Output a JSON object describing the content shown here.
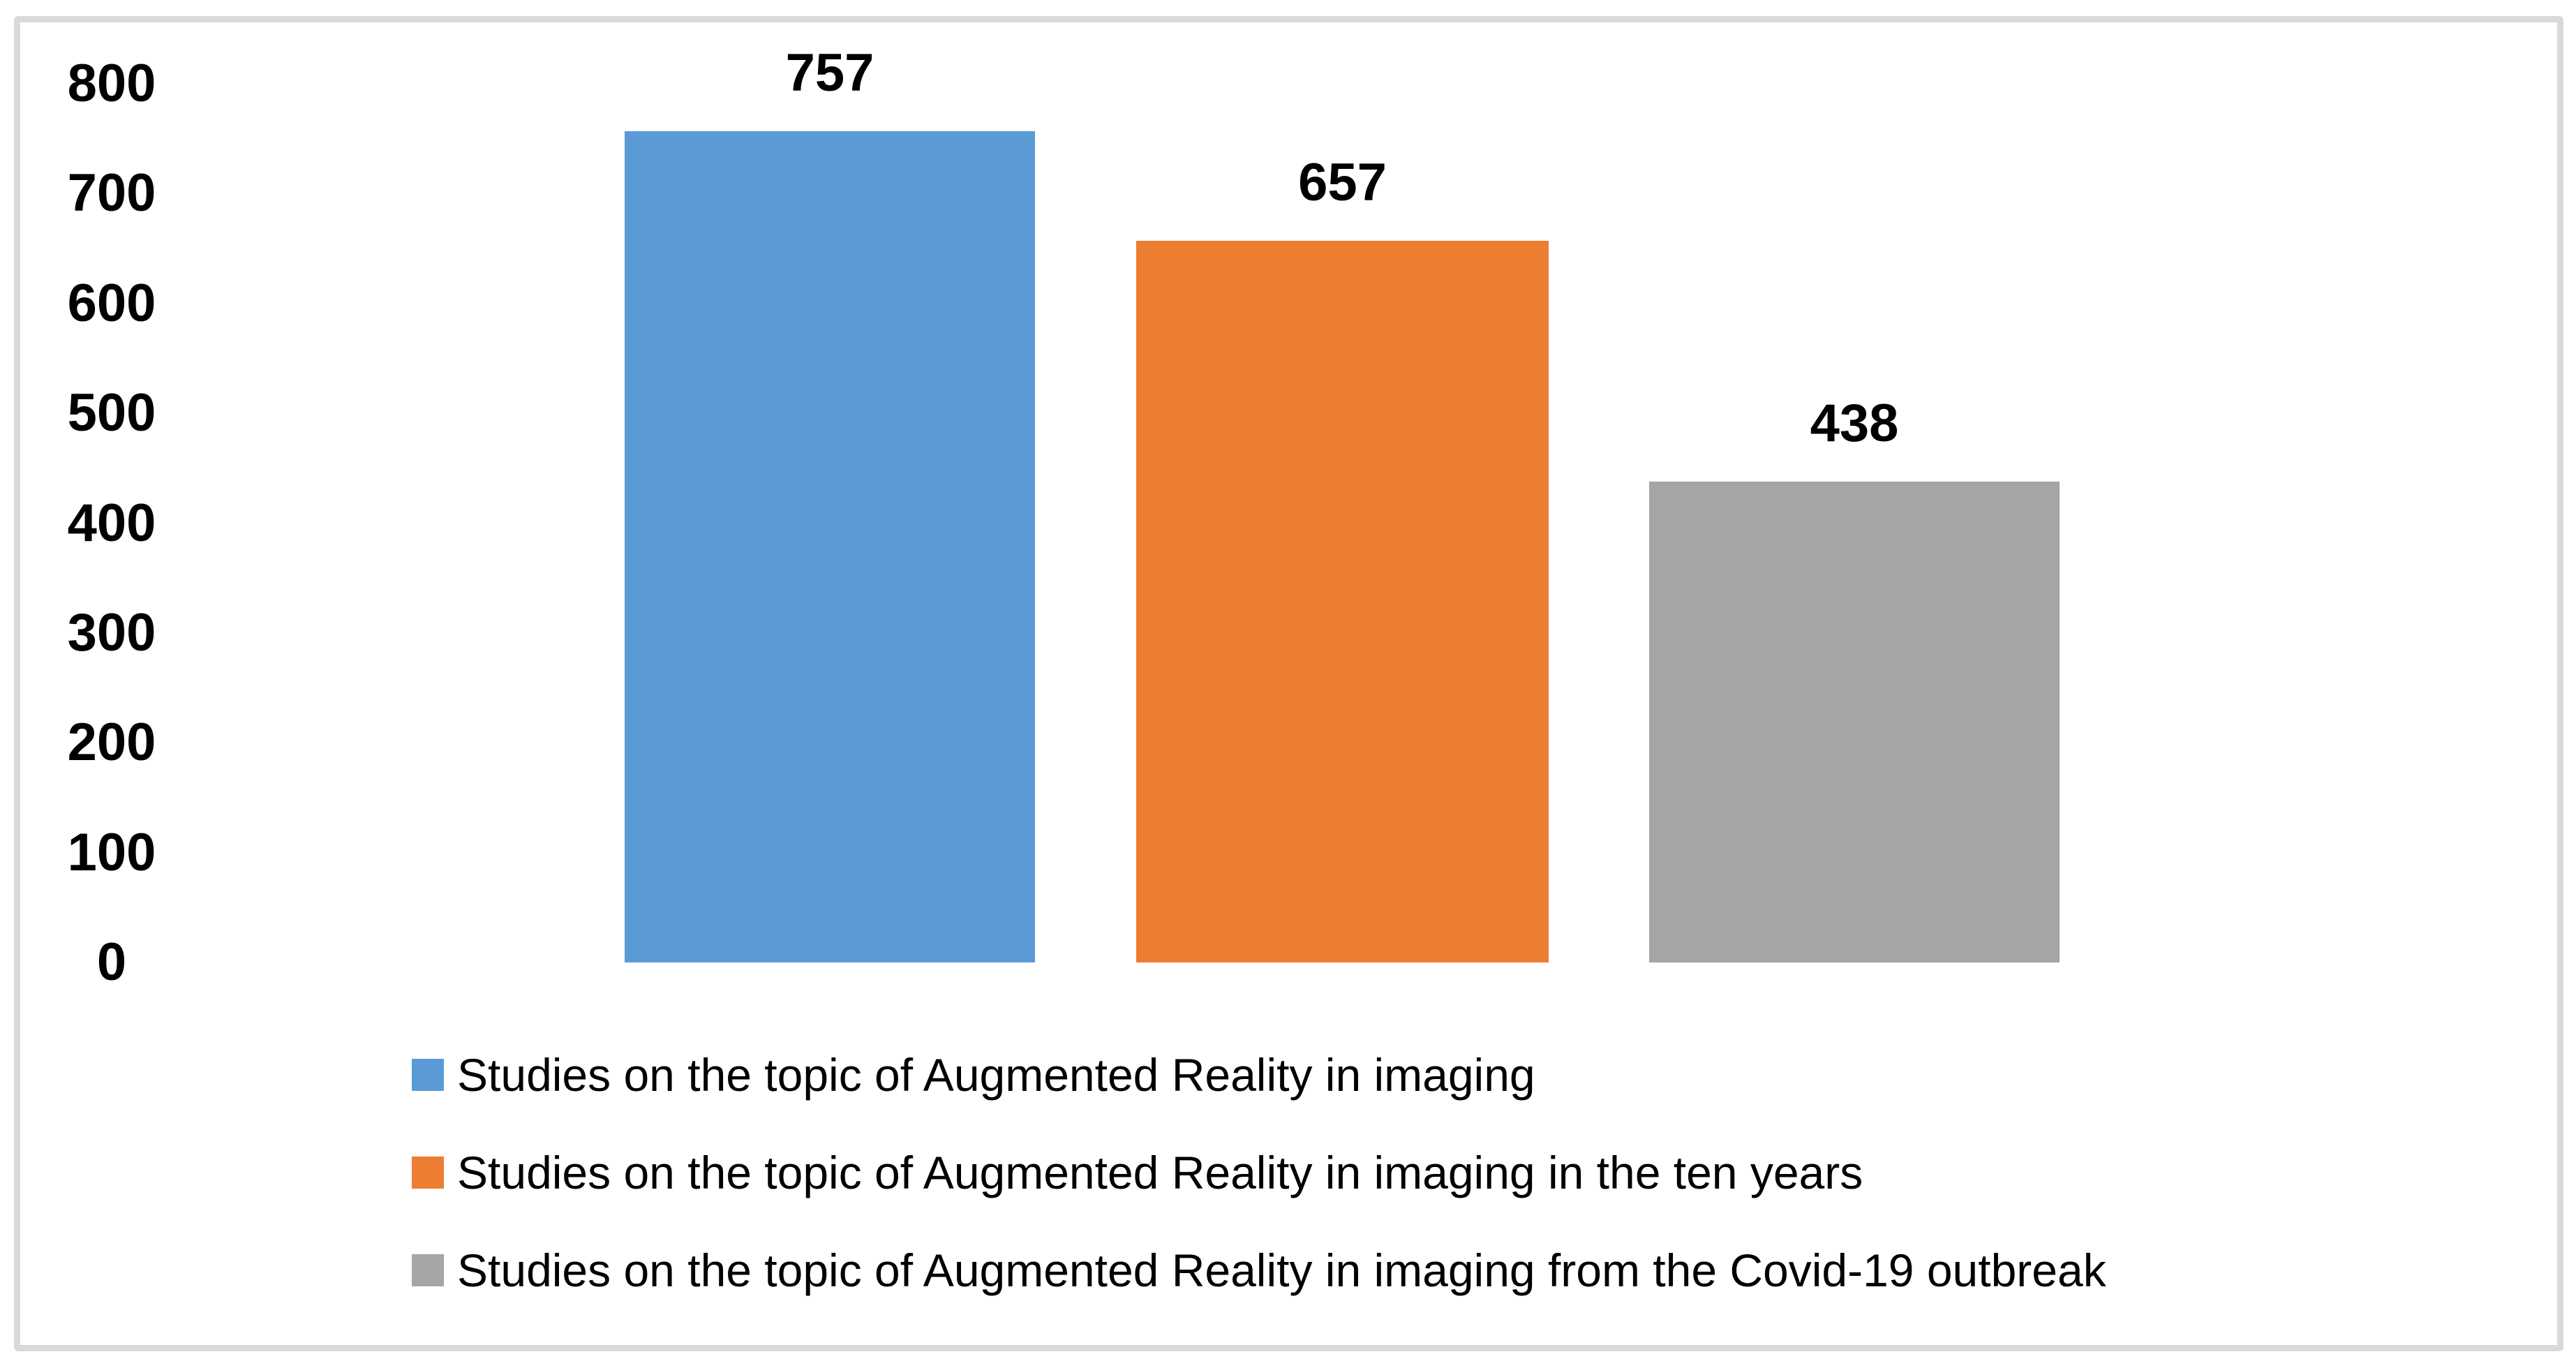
{
  "figure": {
    "background": "#FFFFFF",
    "border_color": "#D9D9D9"
  },
  "chart_data": {
    "type": "bar",
    "title": "",
    "xlabel": "",
    "ylabel": "",
    "categories": [
      "Studies on the topic of Augmented Reality in imaging",
      "Studies on the topic of Augmented Reality in imaging in the ten years",
      "Studies on the topic of Augmented Reality in imaging from the Covid-19 outbreak"
    ],
    "values": [
      757,
      657,
      438
    ],
    "colors": [
      "#5B9BD5",
      "#ED7D31",
      "#A5A5A5"
    ],
    "ylim": [
      0,
      800
    ],
    "ytick_step": 100,
    "yticks": [
      "800",
      "700",
      "600",
      "500",
      "400",
      "300",
      "200",
      "100",
      "0"
    ],
    "ytick_values": [
      800,
      700,
      600,
      500,
      400,
      300,
      200,
      100,
      0
    ],
    "grid": false,
    "axis_lines": false,
    "data_labels_position": "above-bar",
    "legend_position": "bottom-left"
  }
}
